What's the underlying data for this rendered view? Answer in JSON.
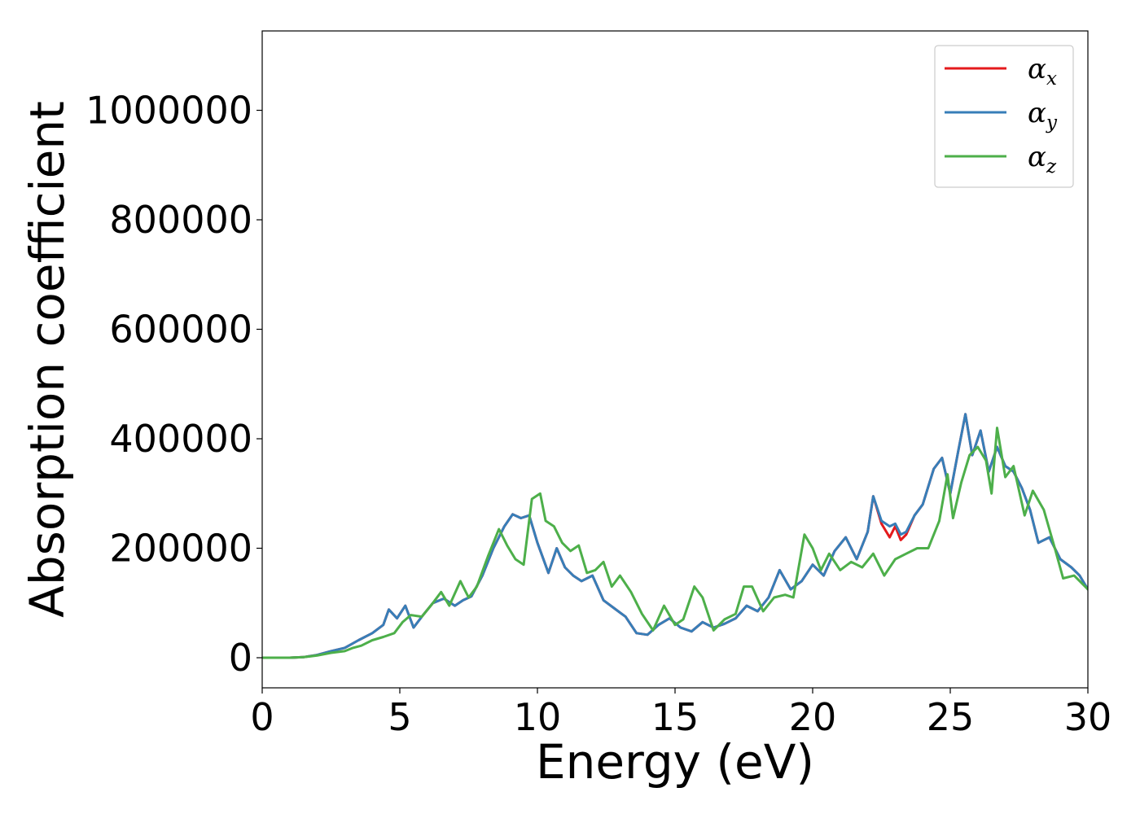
{
  "chart_data": {
    "type": "line",
    "title": "",
    "xlabel": "Energy (eV)",
    "ylabel": "Absorption coefficient",
    "xlim": [
      0,
      30
    ],
    "ylim": [
      -55000,
      1145000
    ],
    "xticks": [
      0,
      5,
      10,
      15,
      20,
      25,
      30
    ],
    "xtick_labels": [
      "0",
      "5",
      "10",
      "15",
      "20",
      "25",
      "30"
    ],
    "yticks": [
      0,
      200000,
      400000,
      600000,
      800000,
      1000000
    ],
    "ytick_labels": [
      "0",
      "200000",
      "400000",
      "600000",
      "800000",
      "1000000"
    ],
    "grid": false,
    "legend_position": "top-right",
    "series": [
      {
        "name": "α_x",
        "legend_symbol": "α",
        "legend_sub": "x",
        "color": "#e41a1c",
        "x": [
          0,
          1,
          1.5,
          2,
          2.5,
          3,
          3.5,
          4,
          4.4,
          4.6,
          4.9,
          5.2,
          5.5,
          5.8,
          6.2,
          6.6,
          7.0,
          7.3,
          7.6,
          8.0,
          8.4,
          8.8,
          9.1,
          9.4,
          9.7,
          10.0,
          10.4,
          10.7,
          11.0,
          11.3,
          11.6,
          12.0,
          12.4,
          12.8,
          13.2,
          13.6,
          14.0,
          14.4,
          14.8,
          15.2,
          15.6,
          16.0,
          16.4,
          16.8,
          17.2,
          17.6,
          18.0,
          18.4,
          18.8,
          19.2,
          19.6,
          20.0,
          20.4,
          20.8,
          21.2,
          21.6,
          22.0,
          22.2,
          22.5,
          22.8,
          23.0,
          23.2,
          23.4,
          23.7,
          24.0,
          24.4,
          24.7,
          25.0,
          25.3,
          25.55,
          25.8,
          26.1,
          26.4,
          26.7,
          27.0,
          27.3,
          27.6,
          27.9,
          28.2,
          28.6,
          29.0,
          29.4,
          29.7,
          30.0
        ],
        "y": [
          0,
          0,
          1000,
          5000,
          12000,
          18000,
          32000,
          45000,
          60000,
          88000,
          72000,
          95000,
          55000,
          75000,
          100000,
          108000,
          95000,
          105000,
          112000,
          150000,
          200000,
          240000,
          262000,
          255000,
          260000,
          210000,
          155000,
          200000,
          165000,
          150000,
          140000,
          150000,
          105000,
          90000,
          75000,
          45000,
          42000,
          60000,
          72000,
          55000,
          48000,
          65000,
          55000,
          62000,
          72000,
          95000,
          85000,
          110000,
          160000,
          125000,
          140000,
          170000,
          150000,
          195000,
          220000,
          180000,
          230000,
          295000,
          245000,
          220000,
          240000,
          215000,
          225000,
          260000,
          280000,
          345000,
          365000,
          300000,
          380000,
          445000,
          370000,
          415000,
          340000,
          385000,
          350000,
          340000,
          310000,
          270000,
          210000,
          220000,
          180000,
          165000,
          150000,
          125000
        ]
      },
      {
        "name": "α_y",
        "legend_symbol": "α",
        "legend_sub": "y",
        "color": "#377eb8",
        "x": [
          0,
          1,
          1.5,
          2,
          2.5,
          3,
          3.5,
          4,
          4.4,
          4.6,
          4.9,
          5.2,
          5.5,
          5.8,
          6.2,
          6.6,
          7.0,
          7.3,
          7.6,
          8.0,
          8.4,
          8.8,
          9.1,
          9.4,
          9.7,
          10.0,
          10.4,
          10.7,
          11.0,
          11.3,
          11.6,
          12.0,
          12.4,
          12.8,
          13.2,
          13.6,
          14.0,
          14.4,
          14.8,
          15.2,
          15.6,
          16.0,
          16.4,
          16.8,
          17.2,
          17.6,
          18.0,
          18.4,
          18.8,
          19.2,
          19.6,
          20.0,
          20.4,
          20.8,
          21.2,
          21.6,
          22.0,
          22.2,
          22.5,
          22.8,
          23.0,
          23.2,
          23.4,
          23.7,
          24.0,
          24.4,
          24.7,
          25.0,
          25.3,
          25.55,
          25.8,
          26.1,
          26.4,
          26.7,
          27.0,
          27.3,
          27.6,
          27.9,
          28.2,
          28.6,
          29.0,
          29.4,
          29.7,
          30.0
        ],
        "y": [
          0,
          0,
          1000,
          5000,
          12000,
          18000,
          32000,
          45000,
          60000,
          88000,
          72000,
          95000,
          55000,
          75000,
          100000,
          108000,
          95000,
          105000,
          112000,
          150000,
          200000,
          240000,
          262000,
          255000,
          260000,
          210000,
          155000,
          200000,
          165000,
          150000,
          140000,
          150000,
          105000,
          90000,
          75000,
          45000,
          42000,
          60000,
          72000,
          55000,
          48000,
          65000,
          55000,
          62000,
          72000,
          95000,
          85000,
          110000,
          160000,
          125000,
          140000,
          170000,
          150000,
          195000,
          220000,
          180000,
          230000,
          295000,
          250000,
          240000,
          245000,
          225000,
          230000,
          260000,
          280000,
          345000,
          365000,
          300000,
          380000,
          445000,
          370000,
          415000,
          340000,
          385000,
          350000,
          340000,
          310000,
          270000,
          210000,
          220000,
          180000,
          165000,
          150000,
          125000
        ]
      },
      {
        "name": "α_z",
        "legend_symbol": "α",
        "legend_sub": "z",
        "color": "#4daf4a",
        "x": [
          0,
          1,
          1.5,
          2,
          2.5,
          3,
          3.3,
          3.6,
          4.0,
          4.4,
          4.8,
          5.1,
          5.4,
          5.8,
          6.2,
          6.5,
          6.8,
          7.2,
          7.5,
          7.8,
          8.2,
          8.6,
          8.9,
          9.2,
          9.5,
          9.8,
          10.1,
          10.3,
          10.6,
          10.9,
          11.2,
          11.5,
          11.8,
          12.1,
          12.4,
          12.7,
          13.0,
          13.4,
          13.8,
          14.2,
          14.6,
          15.0,
          15.3,
          15.7,
          16.0,
          16.4,
          16.8,
          17.2,
          17.5,
          17.8,
          18.2,
          18.6,
          19.0,
          19.3,
          19.7,
          20.0,
          20.3,
          20.6,
          21.0,
          21.4,
          21.8,
          22.2,
          22.6,
          23.0,
          23.4,
          23.8,
          24.2,
          24.6,
          24.9,
          25.1,
          25.4,
          25.7,
          26.0,
          26.3,
          26.5,
          26.7,
          27.0,
          27.3,
          27.7,
          28.0,
          28.4,
          28.8,
          29.1,
          29.5,
          30.0
        ],
        "y": [
          0,
          0,
          1000,
          4000,
          9000,
          12000,
          18000,
          22000,
          32000,
          38000,
          45000,
          65000,
          78000,
          75000,
          100000,
          120000,
          95000,
          140000,
          110000,
          130000,
          185000,
          235000,
          205000,
          180000,
          170000,
          290000,
          300000,
          250000,
          240000,
          210000,
          195000,
          205000,
          155000,
          160000,
          175000,
          130000,
          150000,
          120000,
          80000,
          50000,
          95000,
          60000,
          70000,
          130000,
          110000,
          50000,
          70000,
          80000,
          130000,
          130000,
          85000,
          110000,
          115000,
          110000,
          225000,
          200000,
          160000,
          190000,
          160000,
          175000,
          165000,
          190000,
          150000,
          180000,
          190000,
          200000,
          200000,
          250000,
          335000,
          255000,
          320000,
          370000,
          385000,
          360000,
          300000,
          420000,
          330000,
          350000,
          260000,
          305000,
          270000,
          200000,
          145000,
          150000,
          125000
        ]
      }
    ]
  }
}
